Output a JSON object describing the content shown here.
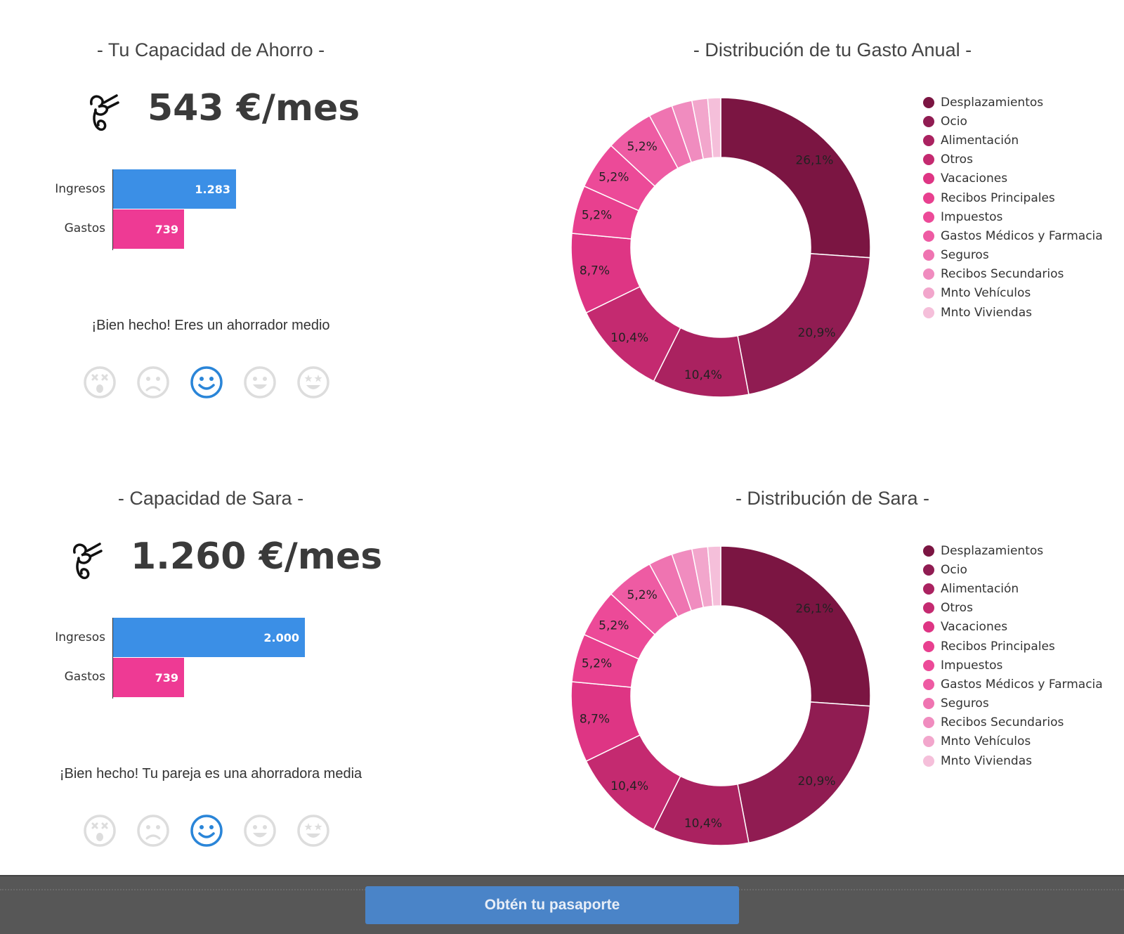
{
  "colors": {
    "income": "#3b8fe6",
    "expense": "#ee3a94",
    "active_face": "#2a85d8",
    "inactive_face": "#dddddd",
    "footer": "#575757",
    "cta": "#4a84c8"
  },
  "user": {
    "title": "- Tu Capacidad de Ahorro -",
    "amount": "543 €/mes",
    "income_label": "Ingresos",
    "expense_label": "Gastos",
    "income_value": "1.283",
    "expense_value": "739",
    "verdict": "¡Bien hecho! Eres un ahorrador medio",
    "rating_selected": 3,
    "rating_icons": [
      "dizzy-face-icon",
      "sad-face-icon",
      "smile-face-icon",
      "happy-face-icon",
      "star-eyes-face-icon"
    ],
    "chart_title": "- Distribución de tu Gasto Anual -"
  },
  "partner": {
    "title": "- Capacidad de Sara -",
    "amount": "1.260 €/mes",
    "income_label": "Ingresos",
    "expense_label": "Gastos",
    "income_value": "2.000",
    "expense_value": "739",
    "verdict": "¡Bien hecho! Tu pareja es una ahorradora media",
    "rating_selected": 3,
    "rating_icons": [
      "dizzy-face-icon",
      "sad-face-icon",
      "smile-face-icon",
      "happy-face-icon",
      "star-eyes-face-icon"
    ],
    "chart_title": "- Distribución de Sara -"
  },
  "footer": {
    "cta_label": "Obtén tu pasaporte"
  },
  "chart_data": [
    {
      "type": "bar",
      "orientation": "horizontal",
      "categories": [
        "Ingresos",
        "Gastos"
      ],
      "values": [
        1283,
        739
      ],
      "labels": [
        "1.283",
        "739"
      ]
    },
    {
      "type": "pie",
      "donut": true,
      "title": "- Distribución de tu Gasto Anual -",
      "categories": [
        "Desplazamientos",
        "Ocio",
        "Alimentación",
        "Otros",
        "Vacaciones",
        "Recibos Principales",
        "Impuestos",
        "Gastos Médicos y Farmacia",
        "Seguros",
        "Recibos Secundarios",
        "Mnto Vehículos",
        "Mnto Viviendas"
      ],
      "values": [
        26.1,
        20.9,
        10.4,
        10.4,
        8.7,
        5.2,
        5.2,
        5.2,
        2.6,
        2.2,
        1.7,
        1.4
      ],
      "labels": [
        "26,1%",
        "20,9%",
        "10,4%",
        "10,4%",
        "8,7%",
        "5,2%",
        "5,2%",
        "5,2%",
        "",
        "",
        "",
        ""
      ],
      "colors": [
        "#7b1542",
        "#901c52",
        "#aa2260",
        "#c42a70",
        "#de3584",
        "#e8408f",
        "#ec4a98",
        "#ee5ba3",
        "#ef74b1",
        "#f08cbf",
        "#f2a6cc",
        "#f5bfda"
      ],
      "legend": "right"
    },
    {
      "type": "bar",
      "orientation": "horizontal",
      "categories": [
        "Ingresos",
        "Gastos"
      ],
      "values": [
        2000,
        739
      ],
      "labels": [
        "2.000",
        "739"
      ]
    },
    {
      "type": "pie",
      "donut": true,
      "title": "- Distribución de Sara -",
      "categories": [
        "Desplazamientos",
        "Ocio",
        "Alimentación",
        "Otros",
        "Vacaciones",
        "Recibos Principales",
        "Impuestos",
        "Gastos Médicos y Farmacia",
        "Seguros",
        "Recibos Secundarios",
        "Mnto Vehículos",
        "Mnto Viviendas"
      ],
      "values": [
        26.1,
        20.9,
        10.4,
        10.4,
        8.7,
        5.2,
        5.2,
        5.2,
        2.6,
        2.2,
        1.7,
        1.4
      ],
      "labels": [
        "26,1%",
        "20,9%",
        "10,4%",
        "10,4%",
        "8,7%",
        "5,2%",
        "5,2%",
        "5,2%",
        "",
        "",
        "",
        ""
      ],
      "colors": [
        "#7b1542",
        "#901c52",
        "#aa2260",
        "#c42a70",
        "#de3584",
        "#e8408f",
        "#ec4a98",
        "#ee5ba3",
        "#ef74b1",
        "#f08cbf",
        "#f2a6cc",
        "#f5bfda"
      ],
      "legend": "right"
    }
  ]
}
